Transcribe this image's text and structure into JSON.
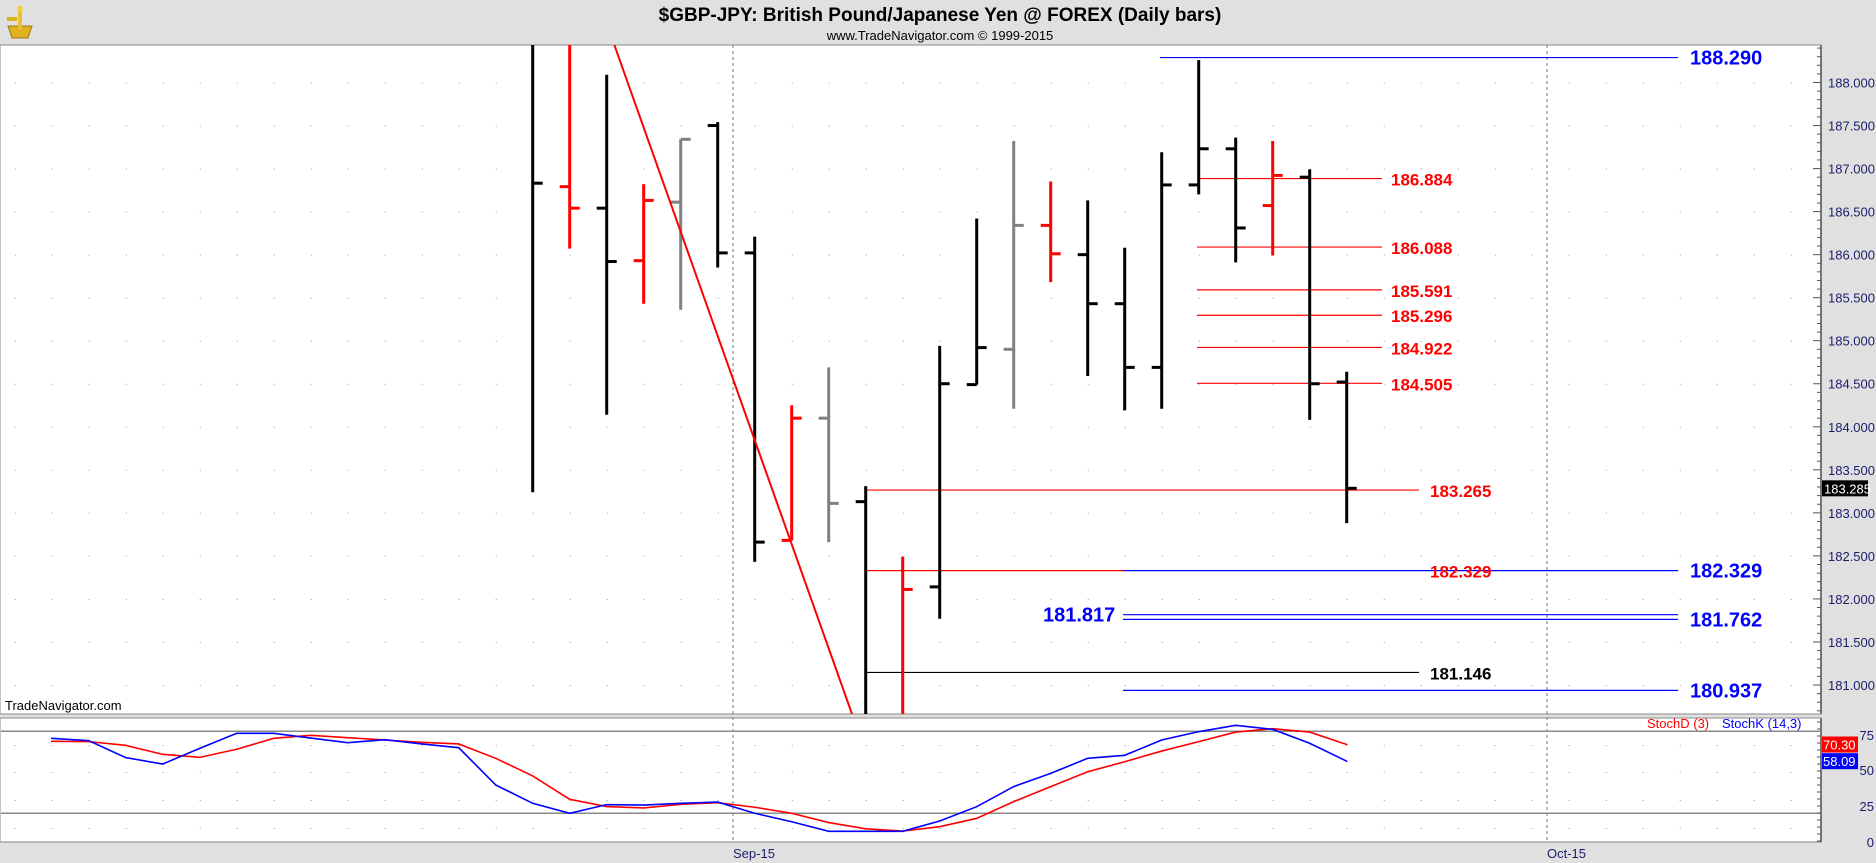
{
  "header": {
    "title": "$GBP-JPY:  British Pound/Japanese Yen @ FOREX  (Daily bars)",
    "subtitle": "www.TradeNavigator.com © 1999-2015",
    "watermark": "TradeNavigator.com",
    "logo": "sextant-logo-icon"
  },
  "colors": {
    "up": "#000000",
    "down": "#ff0000",
    "neutral": "#808080",
    "axis_text": "#1c1c6e",
    "blue_level": "#0000ff",
    "red_level": "#ff0000"
  },
  "chart_data": [
    {
      "type": "ohlc",
      "ylim": [
        180.7,
        188.45
      ],
      "y_ticks": [
        "188.000",
        "187.500",
        "187.000",
        "186.500",
        "186.000",
        "185.500",
        "185.000",
        "184.500",
        "184.000",
        "183.500",
        "183.000",
        "182.500",
        "182.000",
        "181.500",
        "181.000"
      ],
      "x_ticks": [
        "Sep-15",
        "Oct-15"
      ],
      "last_price": "183.285",
      "bars": [
        {
          "o": 188.6,
          "h": 188.8,
          "l": 183.24,
          "c": 186.83,
          "color": "black"
        },
        {
          "o": 186.79,
          "h": 188.8,
          "l": 186.07,
          "c": 186.54,
          "color": "red"
        },
        {
          "o": 186.54,
          "h": 188.09,
          "l": 184.14,
          "c": 185.92,
          "color": "black"
        },
        {
          "o": 185.93,
          "h": 186.82,
          "l": 185.43,
          "c": 186.63,
          "color": "red"
        },
        {
          "o": 186.61,
          "h": 187.34,
          "l": 185.36,
          "c": 187.34,
          "color": "gray"
        },
        {
          "o": 187.5,
          "h": 187.54,
          "l": 185.85,
          "c": 186.02,
          "color": "black"
        },
        {
          "o": 186.02,
          "h": 186.21,
          "l": 182.43,
          "c": 182.66,
          "color": "black"
        },
        {
          "o": 182.68,
          "h": 184.25,
          "l": 182.68,
          "c": 184.1,
          "color": "red"
        },
        {
          "o": 184.1,
          "h": 184.69,
          "l": 182.66,
          "c": 183.11,
          "color": "gray"
        },
        {
          "o": 183.13,
          "h": 183.31,
          "l": 180.2,
          "c": 180.5,
          "color": "black"
        },
        {
          "o": 180.4,
          "h": 182.49,
          "l": 180.2,
          "c": 182.11,
          "color": "red"
        },
        {
          "o": 182.14,
          "h": 184.94,
          "l": 181.77,
          "c": 184.5,
          "color": "black"
        },
        {
          "o": 184.49,
          "h": 186.42,
          "l": 184.49,
          "c": 184.92,
          "color": "black"
        },
        {
          "o": 184.9,
          "h": 187.32,
          "l": 184.21,
          "c": 186.34,
          "color": "gray"
        },
        {
          "o": 186.34,
          "h": 186.85,
          "l": 185.68,
          "c": 186.01,
          "color": "red"
        },
        {
          "o": 186.0,
          "h": 186.63,
          "l": 184.59,
          "c": 185.43,
          "color": "black"
        },
        {
          "o": 185.43,
          "h": 186.08,
          "l": 184.19,
          "c": 184.69,
          "color": "black"
        },
        {
          "o": 184.69,
          "h": 187.19,
          "l": 184.21,
          "c": 186.81,
          "color": "black"
        },
        {
          "o": 186.81,
          "h": 188.26,
          "l": 186.7,
          "c": 187.23,
          "color": "black"
        },
        {
          "o": 187.23,
          "h": 187.36,
          "l": 185.91,
          "c": 186.31,
          "color": "black"
        },
        {
          "o": 186.57,
          "h": 187.32,
          "l": 185.99,
          "c": 186.92,
          "color": "red"
        },
        {
          "o": 186.9,
          "h": 186.99,
          "l": 184.08,
          "c": 184.5,
          "color": "black"
        },
        {
          "o": 184.52,
          "h": 184.64,
          "l": 182.88,
          "c": 183.285,
          "color": "black"
        }
      ],
      "levels": [
        {
          "label": "188.290",
          "value": 188.29,
          "color": "blue"
        },
        {
          "label": "186.884",
          "value": 186.884,
          "color": "red"
        },
        {
          "label": "186.088",
          "value": 186.088,
          "color": "red"
        },
        {
          "label": "185.591",
          "value": 185.591,
          "color": "red"
        },
        {
          "label": "185.296",
          "value": 185.296,
          "color": "red"
        },
        {
          "label": "184.922",
          "value": 184.922,
          "color": "red"
        },
        {
          "label": "184.505",
          "value": 184.505,
          "color": "red"
        },
        {
          "label": "183.265",
          "value": 183.265,
          "color": "red"
        },
        {
          "label": "182.329",
          "value": 182.329,
          "color": "red"
        },
        {
          "label": "182.329",
          "value": 182.329,
          "color": "blue"
        },
        {
          "label": "181.817",
          "value": 181.817,
          "color": "blue"
        },
        {
          "label": "181.762",
          "value": 181.762,
          "color": "blue"
        },
        {
          "label": "181.146",
          "value": 181.146,
          "color": "black"
        },
        {
          "label": "180.937",
          "value": 180.937,
          "color": "blue"
        }
      ],
      "trendline": {
        "color": "red"
      }
    },
    {
      "type": "line",
      "ylim": [
        0,
        100
      ],
      "y_ticks": [
        "75",
        "50",
        "25",
        "0"
      ],
      "reference_lines": [
        80,
        20
      ],
      "series": [
        {
          "name": "StochD (3)",
          "color": "#ff0000",
          "last": "70.30",
          "values": [
            72.6,
            72.4,
            69.7,
            63.1,
            60.9,
            66.8,
            74.8,
            77.0,
            75.3,
            73.6,
            71.9,
            70.7,
            60.2,
            47.3,
            30.2,
            24.9,
            23.9,
            26.5,
            27.7,
            24.4,
            20.0,
            13.2,
            8.6,
            7.0,
            10.2,
            16.3,
            28.5,
            39.5,
            50.4,
            57.7,
            65.5,
            72.4,
            79.4,
            81.9,
            79.4,
            70.3
          ]
        },
        {
          "name": "StochK (14,3)",
          "color": "#0000ff",
          "last": "58.09",
          "values": [
            74.8,
            73.1,
            60.7,
            56.0,
            67.5,
            78.5,
            78.5,
            75.0,
            71.6,
            73.8,
            70.7,
            68.0,
            40.7,
            27.3,
            20.0,
            26.3,
            26.0,
            27.3,
            28.2,
            20.0,
            13.8,
            6.8,
            6.8,
            6.8,
            14.3,
            24.8,
            39.5,
            49.2,
            60.2,
            62.4,
            73.6,
            79.7,
            84.3,
            81.4,
            71.2,
            58.09
          ]
        }
      ]
    }
  ]
}
